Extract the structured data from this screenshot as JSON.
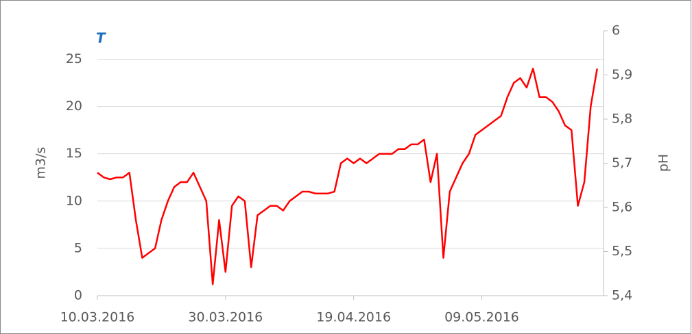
{
  "chart_data": {
    "type": "line",
    "title": "T",
    "y_label": "m3/s",
    "y2_label": "pH",
    "x": [
      "10.03.2016",
      "11.03.2016",
      "12.03.2016",
      "13.03.2016",
      "14.03.2016",
      "15.03.2016",
      "16.03.2016",
      "17.03.2016",
      "18.03.2016",
      "19.03.2016",
      "20.03.2016",
      "21.03.2016",
      "22.03.2016",
      "23.03.2016",
      "24.03.2016",
      "25.03.2016",
      "26.03.2016",
      "27.03.2016",
      "28.03.2016",
      "29.03.2016",
      "30.03.2016",
      "31.03.2016",
      "01.04.2016",
      "02.04.2016",
      "03.04.2016",
      "04.04.2016",
      "05.04.2016",
      "06.04.2016",
      "07.04.2016",
      "08.04.2016",
      "09.04.2016",
      "10.04.2016",
      "11.04.2016",
      "12.04.2016",
      "13.04.2016",
      "14.04.2016",
      "15.04.2016",
      "16.04.2016",
      "17.04.2016",
      "18.04.2016",
      "19.04.2016",
      "20.04.2016",
      "21.04.2016",
      "22.04.2016",
      "23.04.2016",
      "24.04.2016",
      "25.04.2016",
      "26.04.2016",
      "27.04.2016",
      "28.04.2016",
      "29.04.2016",
      "30.04.2016",
      "01.05.2016",
      "02.05.2016",
      "03.05.2016",
      "04.05.2016",
      "05.05.2016",
      "06.05.2016",
      "07.05.2016",
      "08.05.2016",
      "09.05.2016",
      "10.05.2016",
      "11.05.2016",
      "12.05.2016",
      "13.05.2016",
      "14.05.2016",
      "15.05.2016",
      "16.05.2016",
      "17.05.2016",
      "18.05.2016",
      "19.05.2016",
      "20.05.2016",
      "21.05.2016",
      "22.05.2016",
      "23.05.2016",
      "24.05.2016",
      "25.05.2016",
      "26.05.2016",
      "27.05.2016"
    ],
    "series": [
      {
        "color": "#ff0000",
        "values": [
          13,
          12.5,
          12.3,
          12.5,
          12.5,
          13,
          8,
          4,
          4.5,
          5,
          8,
          10,
          11.5,
          12,
          12,
          13,
          11.5,
          10,
          1.2,
          8,
          2.5,
          9.5,
          10.5,
          10,
          3,
          8.5,
          9,
          9.5,
          9.5,
          9,
          10,
          10.5,
          11,
          11,
          10.8,
          10.8,
          10.8,
          11,
          14,
          14.5,
          14,
          14.5,
          14,
          14.5,
          15,
          15,
          15,
          15.5,
          15.5,
          16,
          16,
          16.5,
          12,
          15,
          4,
          11,
          12.5,
          14,
          15,
          17,
          17.5,
          18,
          18.5,
          19,
          21,
          22.5,
          23,
          22,
          24,
          21,
          21,
          20.5,
          19.5,
          18,
          17.5,
          9.5,
          12,
          20,
          24
        ]
      }
    ],
    "xlim": [
      "10.03.2016",
      "28.05.2016"
    ],
    "xticks": [
      "10.03.2016",
      "30.03.2016",
      "19.04.2016",
      "09.05.2016"
    ],
    "ylim": [
      0,
      28
    ],
    "yticks": [
      0,
      5,
      10,
      15,
      20,
      25
    ],
    "y2lim": [
      5.4,
      6.0
    ],
    "y2ticks": [
      {
        "value": 5.4,
        "label": "5,4"
      },
      {
        "value": 5.5,
        "label": "5,5"
      },
      {
        "value": 5.6,
        "label": "5,6"
      },
      {
        "value": 5.7,
        "label": "5,7"
      },
      {
        "value": 5.8,
        "label": "5,8"
      },
      {
        "value": 5.9,
        "label": "5,9"
      },
      6
    ],
    "grid": true
  }
}
